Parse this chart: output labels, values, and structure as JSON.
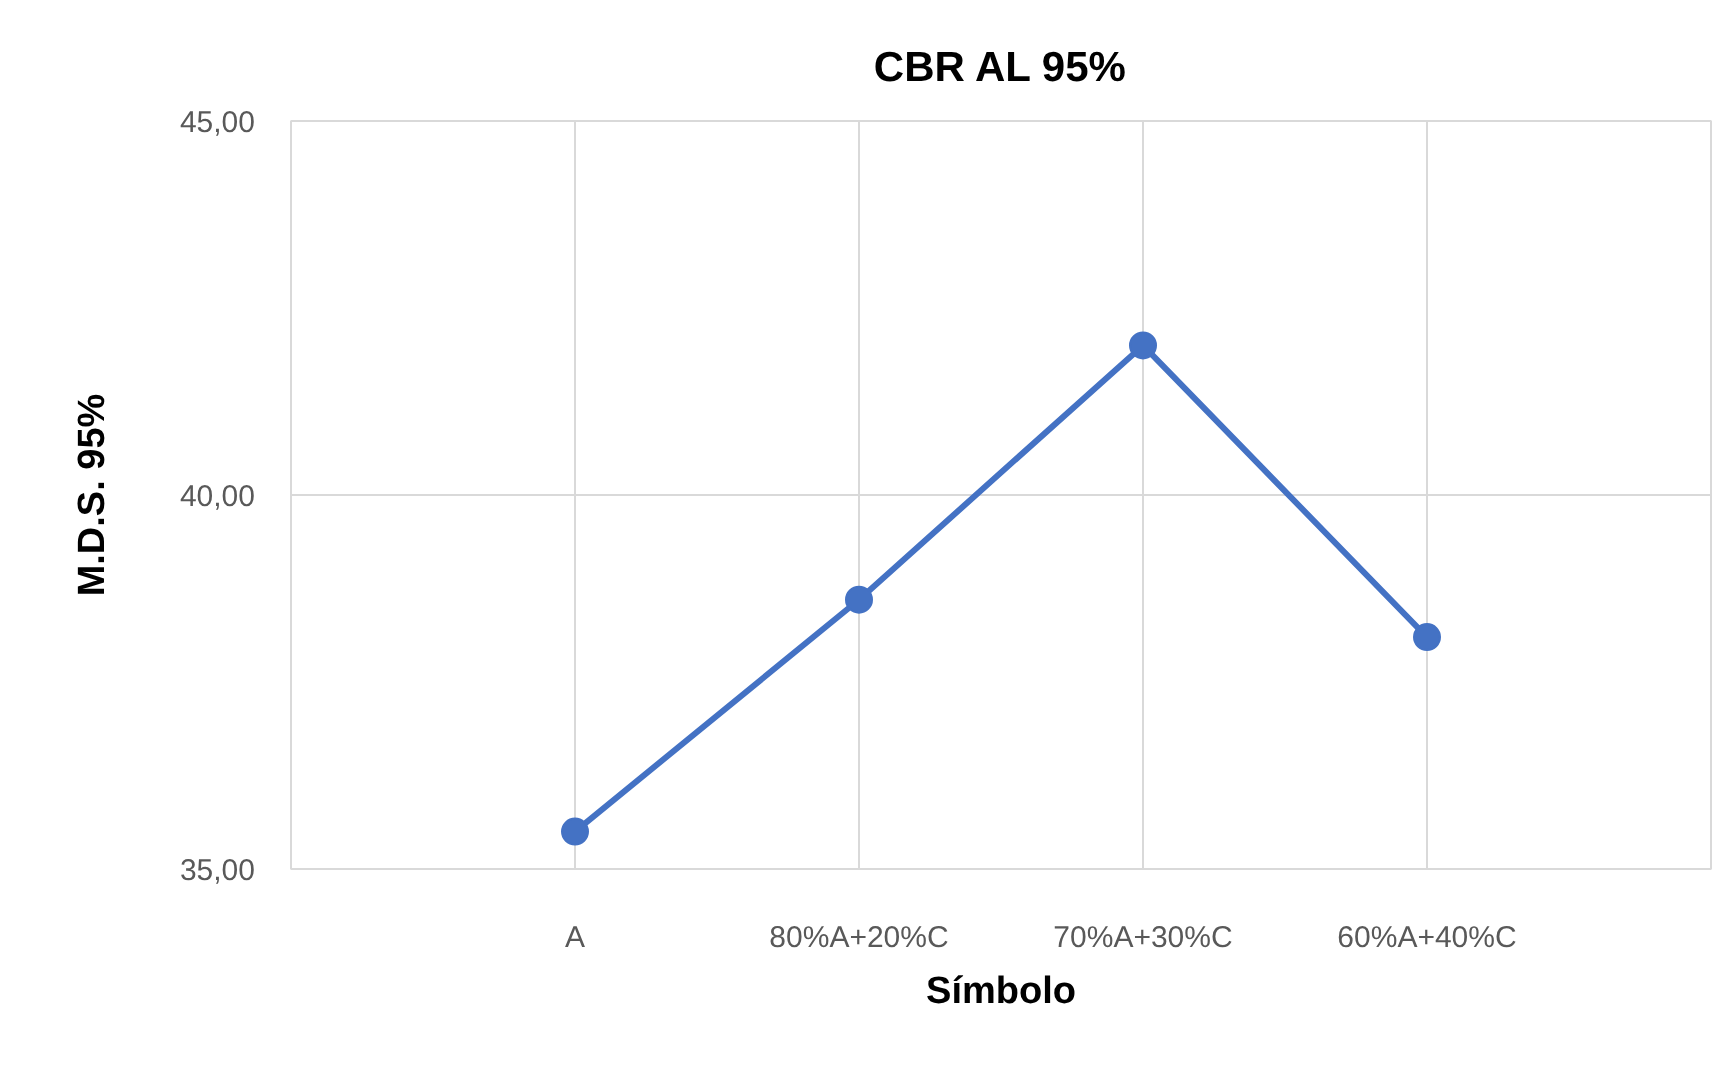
{
  "chart_data": {
    "type": "line",
    "title": "CBR AL 95%",
    "xlabel": "Símbolo",
    "ylabel": "M.D.S. 95%",
    "categories": [
      null,
      "A",
      "80%A+20%C",
      "70%A+30%C",
      "60%A+40%C",
      null
    ],
    "series": [
      {
        "color": "#4472c4",
        "values": [
          null,
          35.5,
          38.6,
          42.0,
          38.1,
          null
        ]
      }
    ],
    "ylim": [
      35,
      45
    ],
    "yticks": [
      {
        "value": 35,
        "label": "35,00"
      },
      {
        "value": 40,
        "label": "40,00"
      },
      {
        "value": 45,
        "label": "45,00"
      }
    ],
    "grid": true,
    "marker": "circle",
    "line_style": "solid"
  }
}
